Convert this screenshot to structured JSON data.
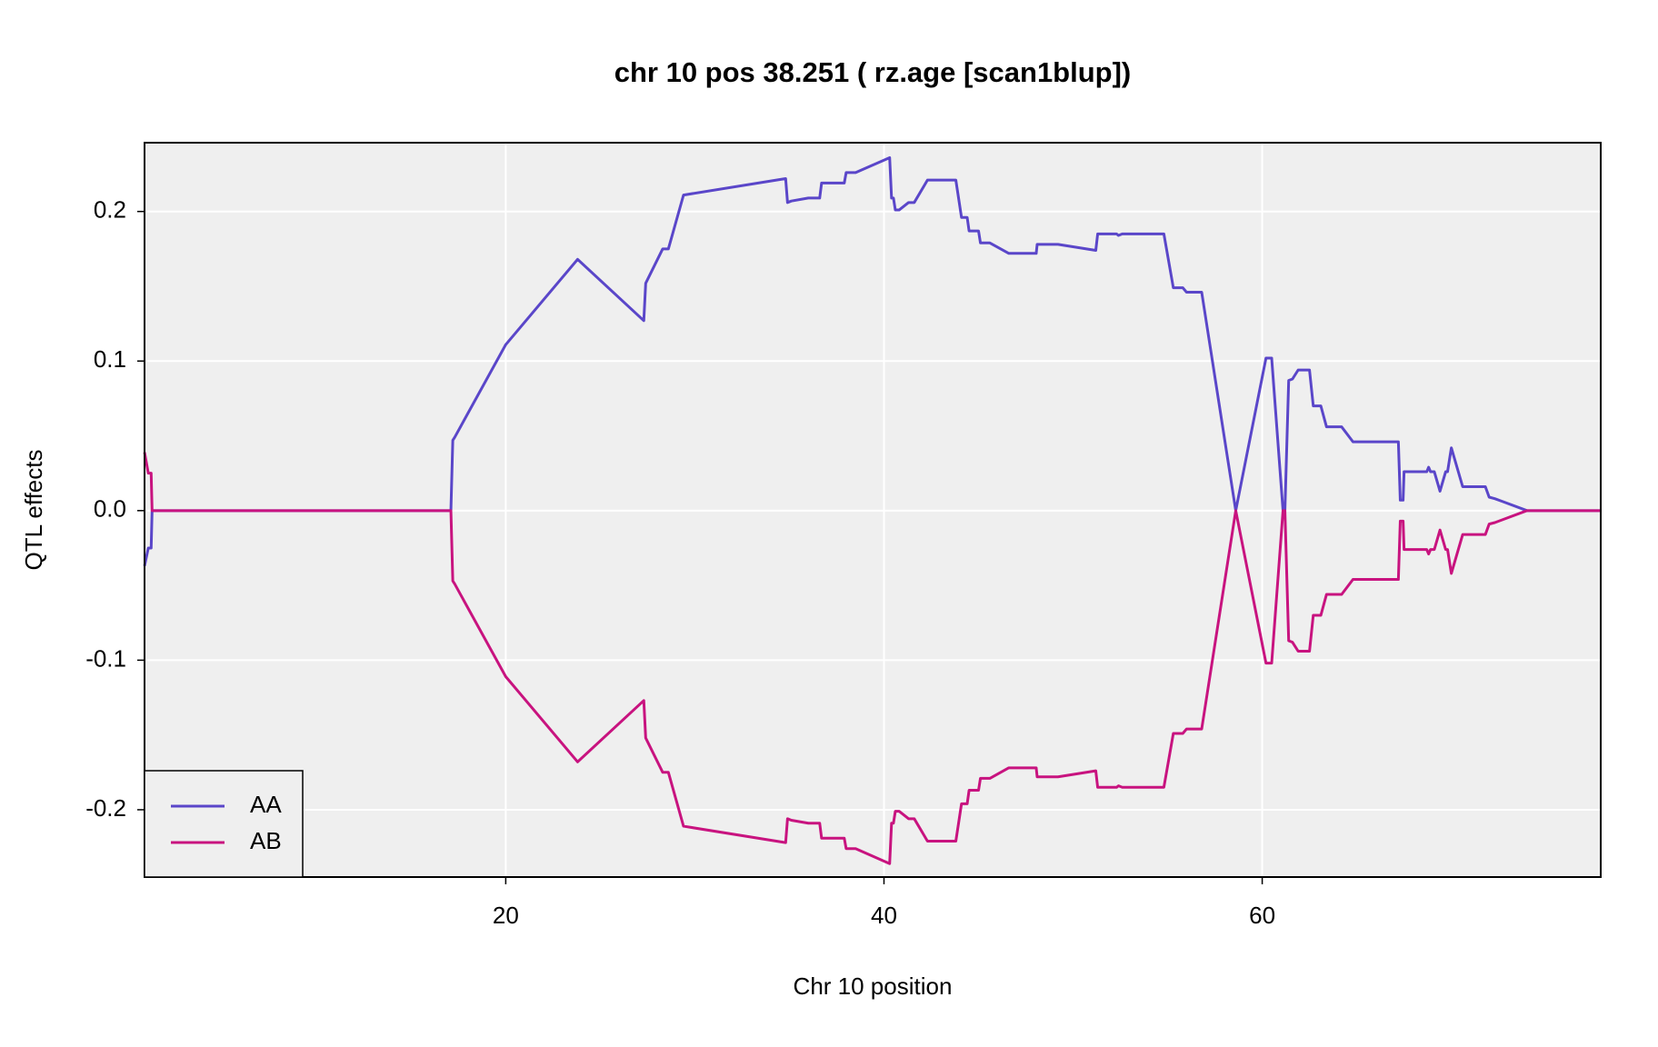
{
  "chart_data": {
    "type": "line",
    "title": "chr 10 pos 38.251 ( rz.age  [scan1blup])",
    "x_label": "Chr 10 position",
    "y_label": "QTL effects",
    "x": [
      0.9,
      1.1,
      1.25,
      1.3,
      17.1,
      17.2,
      17.3,
      20,
      23.8,
      27.3,
      27.4,
      28.3,
      28.6,
      29.4,
      34.8,
      34.9,
      35.1,
      36.0,
      36.6,
      36.7,
      37.9,
      38.0,
      38.5,
      40.3,
      40.4,
      40.5,
      40.6,
      40.8,
      41.3,
      41.6,
      42.3,
      43.8,
      44.1,
      44.4,
      44.5,
      45.0,
      45.1,
      45.6,
      46.6,
      48.05,
      48.1,
      49.2,
      51.2,
      51.3,
      52.3,
      52.4,
      52.6,
      54.8,
      55.3,
      55.8,
      56.0,
      56.8,
      58.6,
      60.2,
      60.5,
      61.1,
      61.2,
      61.4,
      61.6,
      61.9,
      62.5,
      62.7,
      63.1,
      63.4,
      64.2,
      64.8,
      67.2,
      67.3,
      67.45,
      67.5,
      68.7,
      68.8,
      68.9,
      69.1,
      69.4,
      69.7,
      69.8,
      70.0,
      70.6,
      71.8,
      72.0,
      72.3,
      74.0,
      77.9
    ],
    "series": [
      {
        "name": "AA",
        "color": "#5a46c9",
        "values": [
          -0.037,
          -0.025,
          -0.025,
          0,
          0,
          0.047,
          0.049,
          0.111,
          0.168,
          0.127,
          0.152,
          0.175,
          0.175,
          0.211,
          0.222,
          0.206,
          0.207,
          0.209,
          0.209,
          0.219,
          0.219,
          0.226,
          0.226,
          0.236,
          0.209,
          0.209,
          0.201,
          0.201,
          0.206,
          0.206,
          0.221,
          0.221,
          0.196,
          0.196,
          0.187,
          0.187,
          0.179,
          0.179,
          0.172,
          0.172,
          0.178,
          0.178,
          0.174,
          0.185,
          0.185,
          0.184,
          0.185,
          0.185,
          0.149,
          0.149,
          0.146,
          0.146,
          0,
          0.102,
          0.102,
          0,
          0,
          0.087,
          0.088,
          0.094,
          0.094,
          0.07,
          0.07,
          0.056,
          0.056,
          0.046,
          0.046,
          0.007,
          0.007,
          0.026,
          0.026,
          0.029,
          0.026,
          0.026,
          0.013,
          0.026,
          0.026,
          0.042,
          0.016,
          0.016,
          0.009,
          0.008,
          0,
          0
        ]
      },
      {
        "name": "AB",
        "color": "#c8137f",
        "values": [
          0.039,
          0.025,
          0.025,
          0,
          0,
          -0.047,
          -0.049,
          -0.111,
          -0.168,
          -0.127,
          -0.152,
          -0.175,
          -0.175,
          -0.211,
          -0.222,
          -0.206,
          -0.207,
          -0.209,
          -0.209,
          -0.219,
          -0.219,
          -0.226,
          -0.226,
          -0.236,
          -0.209,
          -0.209,
          -0.201,
          -0.201,
          -0.206,
          -0.206,
          -0.221,
          -0.221,
          -0.196,
          -0.196,
          -0.187,
          -0.187,
          -0.179,
          -0.179,
          -0.172,
          -0.172,
          -0.178,
          -0.178,
          -0.174,
          -0.185,
          -0.185,
          -0.184,
          -0.185,
          -0.185,
          -0.149,
          -0.149,
          -0.146,
          -0.146,
          0,
          -0.102,
          -0.102,
          0,
          0,
          -0.087,
          -0.088,
          -0.094,
          -0.094,
          -0.07,
          -0.07,
          -0.056,
          -0.056,
          -0.046,
          -0.046,
          -0.007,
          -0.007,
          -0.026,
          -0.026,
          -0.029,
          -0.026,
          -0.026,
          -0.013,
          -0.026,
          -0.026,
          -0.042,
          -0.016,
          -0.016,
          -0.009,
          -0.008,
          0,
          0
        ]
      }
    ],
    "xlim": [
      0.9,
      77.9
    ],
    "ylim": [
      -0.245,
      0.246
    ],
    "xticks": [
      20,
      40,
      60
    ],
    "yticks": [
      -0.2,
      -0.1,
      {
        "value": 0,
        "label": "0.0"
      },
      0.1,
      0.2
    ],
    "grid": true,
    "legend": "bottom-left"
  }
}
